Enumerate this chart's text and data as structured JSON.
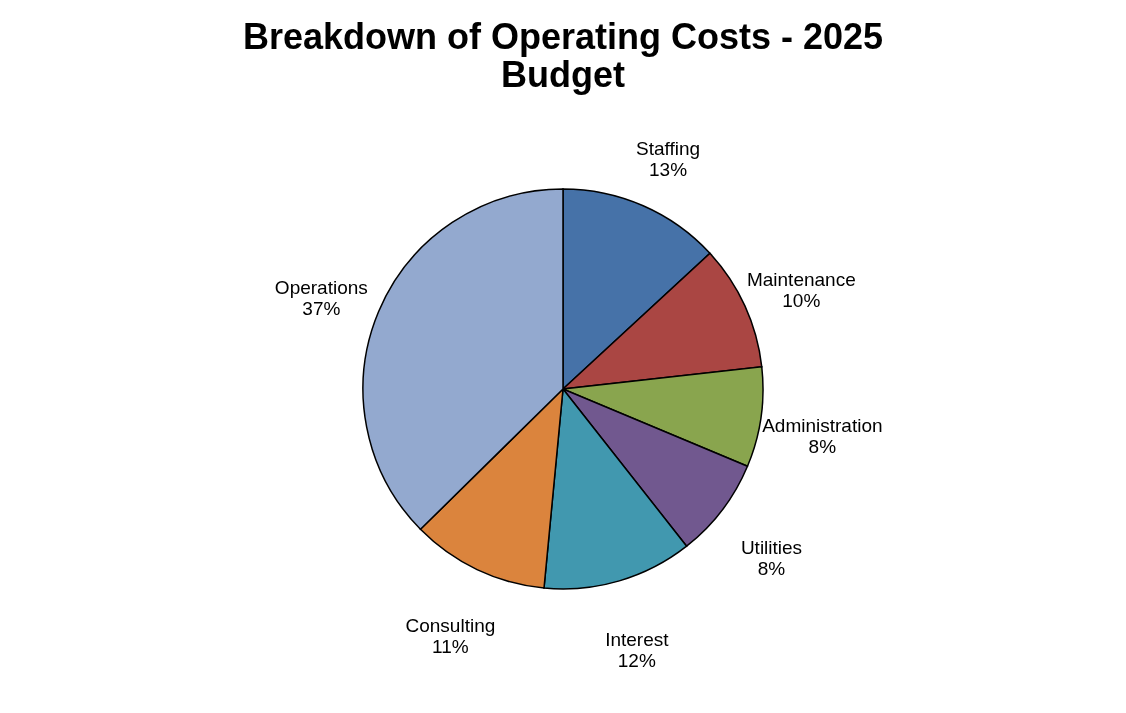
{
  "chart_data": {
    "type": "pie",
    "title": "Breakdown of Operating Costs - 2025 Budget",
    "categories": [
      "Staffing",
      "Maintenance",
      "Administration",
      "Utilities",
      "Interest",
      "Consulting",
      "Operations"
    ],
    "values": [
      13,
      10,
      8,
      8,
      12,
      11,
      37
    ],
    "value_labels": [
      "13%",
      "10%",
      "8%",
      "8%",
      "12%",
      "11%",
      "37%"
    ],
    "colors": [
      "#4672a8",
      "#aa4643",
      "#89a54e",
      "#71588f",
      "#4198af",
      "#db843d",
      "#93a9cf"
    ],
    "legend": false
  }
}
